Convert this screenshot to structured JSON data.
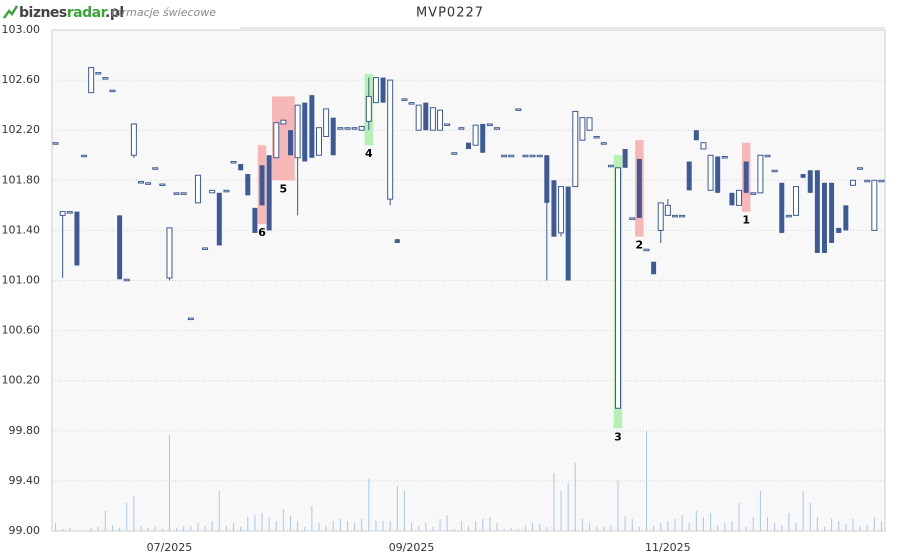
{
  "header": {
    "logo_parts": [
      "biznes",
      "radar",
      ".pl"
    ],
    "subtitle": "formacje świecowe"
  },
  "chart_data": {
    "type": "candlestick",
    "title": "MVP0227",
    "ylim": [
      99,
      103
    ],
    "yticks": [
      {
        "value": 99,
        "label": "99.00"
      },
      {
        "value": 99.4,
        "label": "99.40"
      },
      {
        "value": 99.8,
        "label": "99.80"
      },
      {
        "value": 100.2,
        "label": "100.20"
      },
      {
        "value": 100.6,
        "label": "100.60"
      },
      {
        "value": 101,
        "label": "101.00"
      },
      {
        "value": 101.4,
        "label": "101.40"
      },
      {
        "value": 101.8,
        "label": "101.80"
      },
      {
        "value": 102.2,
        "label": "102.20"
      },
      {
        "value": 102.6,
        "label": "102.60"
      },
      {
        "value": 103,
        "label": "103.00"
      }
    ],
    "xticks": [
      {
        "value": 16,
        "label": "07/2025"
      },
      {
        "value": 50,
        "label": "09/2025"
      },
      {
        "value": 86,
        "label": "11/2025"
      }
    ],
    "grid": true,
    "up_color": "#ffffff",
    "down_color": "#3d5a96",
    "volume_color": "#a8c8ea",
    "y2lim": [
      0,
      500
    ],
    "ohlc": [
      [
        102.1,
        102.1,
        102.1,
        102.1
      ],
      [
        101.52,
        101.55,
        101.02,
        101.55
      ],
      [
        101.55,
        101.55,
        101.55,
        101.55
      ],
      [
        101.55,
        101.55,
        101.12,
        101.12
      ],
      [
        102,
        102,
        102,
        102
      ],
      [
        102.5,
        102.7,
        102.5,
        102.7
      ],
      [
        102.66,
        102.66,
        102.66,
        102.66
      ],
      [
        102.62,
        102.62,
        102.62,
        102.62
      ],
      [
        102.52,
        102.52,
        102.52,
        102.52
      ],
      [
        101.52,
        101.52,
        101.01,
        101.01
      ],
      [
        101.01,
        101.01,
        101.01,
        101.01
      ],
      [
        102,
        102.25,
        101.98,
        102.25
      ],
      [
        101.79,
        101.79,
        101.79,
        101.79
      ],
      [
        101.78,
        101.78,
        101.78,
        101.78
      ],
      [
        101.9,
        101.9,
        101.9,
        101.9
      ],
      [
        101.77,
        101.77,
        101.77,
        101.77
      ],
      [
        101.02,
        101.42,
        101,
        101.42
      ],
      [
        101.7,
        101.7,
        101.7,
        101.7
      ],
      [
        101.7,
        101.7,
        101.7,
        101.7
      ],
      [
        100.7,
        100.7,
        100.7,
        100.7
      ],
      [
        101.62,
        101.84,
        101.62,
        101.84
      ],
      [
        101.26,
        101.26,
        101.26,
        101.26
      ],
      [
        101.7,
        101.72,
        101.7,
        101.72
      ],
      [
        101.7,
        101.7,
        101.28,
        101.28
      ],
      [
        101.72,
        101.72,
        101.72,
        101.72
      ],
      [
        101.95,
        101.95,
        101.95,
        101.95
      ],
      [
        101.93,
        101.93,
        101.88,
        101.88
      ],
      [
        101.85,
        101.85,
        101.68,
        101.68
      ],
      [
        101.58,
        101.58,
        101.38,
        101.38
      ],
      [
        101.92,
        101.92,
        101.6,
        101.6
      ],
      [
        102,
        102,
        101.4,
        101.4
      ],
      [
        101.98,
        102.26,
        101.98,
        102.26
      ],
      [
        102.25,
        102.28,
        102.25,
        102.28
      ],
      [
        102.2,
        102.2,
        102,
        102
      ],
      [
        101.98,
        102.4,
        101.52,
        102.4
      ],
      [
        102.42,
        102.42,
        101.95,
        101.95
      ],
      [
        102.48,
        102.48,
        101.98,
        101.98
      ],
      [
        102,
        102.22,
        102,
        102.22
      ],
      [
        102.15,
        102.37,
        102.15,
        102.37
      ],
      [
        102.3,
        102.3,
        102,
        102
      ],
      [
        102.22,
        102.22,
        102.22,
        102.22
      ],
      [
        102.22,
        102.22,
        102.22,
        102.22
      ],
      [
        102.22,
        102.22,
        102.22,
        102.22
      ],
      [
        102.2,
        102.23,
        102.2,
        102.23
      ],
      [
        102.27,
        102.62,
        102.2,
        102.47
      ],
      [
        102.42,
        102.62,
        102.42,
        102.62
      ],
      [
        102.62,
        102.62,
        102.42,
        102.42
      ],
      [
        101.65,
        102.6,
        101.6,
        102.6
      ],
      [
        101.33,
        101.33,
        101.3,
        101.3
      ],
      [
        102.45,
        102.45,
        102.45,
        102.45
      ],
      [
        102.42,
        102.42,
        102.42,
        102.42
      ],
      [
        102.2,
        102.4,
        102.2,
        102.4
      ],
      [
        102.42,
        102.42,
        102.2,
        102.2
      ],
      [
        102.2,
        102.38,
        102.2,
        102.38
      ],
      [
        102.2,
        102.36,
        102.2,
        102.36
      ],
      [
        102.25,
        102.25,
        102.25,
        102.25
      ],
      [
        102.02,
        102.02,
        102.02,
        102.02
      ],
      [
        102.22,
        102.22,
        102.22,
        102.22
      ],
      [
        102.1,
        102.1,
        102.05,
        102.05
      ],
      [
        102.08,
        102.24,
        102.08,
        102.24
      ],
      [
        102.25,
        102.25,
        102.02,
        102.02
      ],
      [
        102.25,
        102.25,
        102.25,
        102.25
      ],
      [
        102.22,
        102.22,
        102.22,
        102.22
      ],
      [
        102,
        102,
        102,
        102
      ],
      [
        102,
        102,
        102,
        102
      ],
      [
        102.37,
        102.37,
        102.37,
        102.37
      ],
      [
        102,
        102,
        102,
        102
      ],
      [
        102,
        102,
        102,
        102
      ],
      [
        102,
        102,
        102,
        102
      ],
      [
        102,
        102,
        101,
        101.62
      ],
      [
        101.8,
        101.8,
        101.35,
        101.35
      ],
      [
        101.38,
        101.75,
        101.35,
        101.75
      ],
      [
        101.75,
        101.75,
        101,
        101
      ],
      [
        101.75,
        102.35,
        101.75,
        102.35
      ],
      [
        102.12,
        102.3,
        102.12,
        102.3
      ],
      [
        102.2,
        102.3,
        102.2,
        102.3
      ],
      [
        102.15,
        102.15,
        102.15,
        102.15
      ],
      [
        102.1,
        102.1,
        102.1,
        102.1
      ],
      [
        101.92,
        101.92,
        101.92,
        101.92
      ],
      [
        99.98,
        101.9,
        99.98,
        101.9
      ],
      [
        102.05,
        102.05,
        101.9,
        101.9
      ],
      [
        101.5,
        101.5,
        101.5,
        101.5
      ],
      [
        101.97,
        101.97,
        101.5,
        101.5
      ],
      [
        101.25,
        101.25,
        101.25,
        101.25
      ],
      [
        101.15,
        101.15,
        101.05,
        101.05
      ],
      [
        101.4,
        101.62,
        101.3,
        101.62
      ],
      [
        101.52,
        101.65,
        101.52,
        101.6
      ],
      [
        101.52,
        101.52,
        101.52,
        101.52
      ],
      [
        101.52,
        101.52,
        101.52,
        101.52
      ],
      [
        101.95,
        101.95,
        101.72,
        101.72
      ],
      [
        102.2,
        102.2,
        102.12,
        102.12
      ],
      [
        102.05,
        102.1,
        102.05,
        102.1
      ],
      [
        101.72,
        102,
        101.72,
        102
      ],
      [
        101.99,
        101.99,
        101.7,
        101.7
      ],
      [
        101.99,
        101.99,
        101.99,
        101.99
      ],
      [
        101.7,
        101.7,
        101.6,
        101.6
      ],
      [
        101.6,
        101.72,
        101.6,
        101.72
      ],
      [
        101.95,
        101.95,
        101.7,
        101.7
      ],
      [
        101.7,
        101.7,
        101.7,
        101.7
      ],
      [
        101.7,
        102,
        101.7,
        102
      ],
      [
        102,
        102,
        102,
        102
      ],
      [
        101.88,
        101.88,
        101.88,
        101.88
      ],
      [
        101.78,
        101.78,
        101.38,
        101.38
      ],
      [
        101.52,
        101.52,
        101.52,
        101.52
      ],
      [
        101.52,
        101.75,
        101.52,
        101.75
      ],
      [
        101.85,
        101.85,
        101.82,
        101.82
      ],
      [
        101.88,
        101.88,
        101.7,
        101.7
      ],
      [
        101.88,
        101.88,
        101.22,
        101.22
      ],
      [
        101.78,
        101.78,
        101.22,
        101.22
      ],
      [
        101.78,
        101.78,
        101.3,
        101.3
      ],
      [
        101.42,
        101.42,
        101.38,
        101.38
      ],
      [
        101.6,
        101.6,
        101.4,
        101.4
      ],
      [
        101.76,
        101.8,
        101.76,
        101.8
      ],
      [
        101.9,
        101.9,
        101.9,
        101.9
      ],
      [
        101.8,
        101.8,
        101.8,
        101.8
      ],
      [
        101.4,
        101.8,
        101.4,
        101.8
      ],
      [
        101.8,
        101.8,
        101.8,
        101.8
      ]
    ],
    "volume": [
      8,
      2,
      3,
      0,
      0,
      3,
      4,
      20,
      6,
      3,
      28,
      35,
      5,
      3,
      5,
      2,
      96,
      3,
      5,
      5,
      8,
      5,
      10,
      40,
      5,
      8,
      4,
      14,
      16,
      18,
      14,
      10,
      22,
      15,
      10,
      4,
      25,
      8,
      5,
      10,
      12,
      10,
      8,
      12,
      52,
      10,
      10,
      10,
      45,
      40,
      8,
      5,
      8,
      4,
      12,
      16,
      2,
      10,
      5,
      10,
      12,
      14,
      8,
      2,
      3,
      2,
      6,
      8,
      7,
      4,
      58,
      40,
      48,
      68,
      12,
      8,
      5,
      4,
      6,
      50,
      15,
      12,
      4,
      100,
      5,
      8,
      10,
      12,
      16,
      8,
      20,
      14,
      18,
      6,
      8,
      10,
      28,
      4,
      14,
      40,
      14,
      8,
      6,
      18,
      8,
      40,
      28,
      14,
      4,
      12,
      10,
      7,
      12,
      5,
      6,
      14,
      10
    ],
    "patterns": [
      {
        "label": "6",
        "start": 29,
        "end": 29,
        "low": 101.45,
        "high": 102.08,
        "color": "#f7b7b7"
      },
      {
        "label": "5",
        "start": 31,
        "end": 33,
        "low": 101.8,
        "high": 102.47,
        "color": "#f7b7b7"
      },
      {
        "label": "4",
        "start": 44,
        "end": 44,
        "low": 102.08,
        "high": 102.65,
        "color": "#b5f0b5"
      },
      {
        "label": "3",
        "start": 79,
        "end": 79,
        "low": 99.82,
        "high": 102,
        "color": "#b5f0b5"
      },
      {
        "label": "2",
        "start": 82,
        "end": 82,
        "low": 101.35,
        "high": 102.12,
        "color": "#f7b7b7"
      },
      {
        "label": "1",
        "start": 97,
        "end": 97,
        "low": 101.55,
        "high": 102.1,
        "color": "#f7b7b7"
      }
    ]
  }
}
